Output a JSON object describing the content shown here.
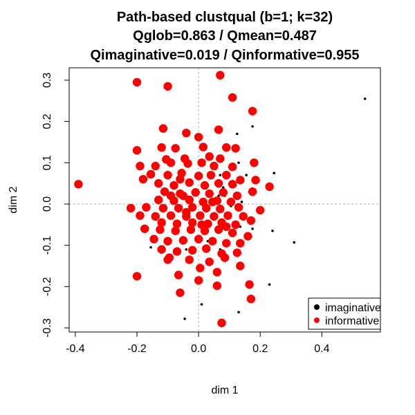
{
  "chart_data": {
    "type": "scatter",
    "title_lines": [
      "Path-based clustqual (b=1; k=32)",
      "Qglob=0.863 / Qmean=0.487",
      "Qimaginative=0.019 / Qinformative=0.955"
    ],
    "xlabel": "dim 1",
    "ylabel": "dim 2",
    "xlim": [
      -0.42,
      0.59
    ],
    "ylim": [
      -0.31,
      0.33
    ],
    "x_ticks": [
      -0.4,
      -0.2,
      0.0,
      0.2,
      0.4
    ],
    "x_tick_labels": [
      "-0.4",
      "-0.2",
      "0.0",
      "0.2",
      "0.4"
    ],
    "y_ticks": [
      -0.3,
      -0.2,
      -0.1,
      0.0,
      0.1,
      0.2,
      0.3
    ],
    "y_tick_labels": [
      "-0.3",
      "-0.2",
      "-0.1",
      "0.0",
      "0.1",
      "0.2",
      "0.3"
    ],
    "reference_lines": {
      "x": 0,
      "y": 0
    },
    "legend_position": "bottom-right",
    "colors": {
      "imaginative": "#000000",
      "informative": "#ff0000",
      "reference": "#bbbbbb"
    },
    "series": [
      {
        "name": "imaginative",
        "color": "#000000",
        "points": [
          [
            0.54,
            0.255
          ],
          [
            0.175,
            0.188
          ],
          [
            0.125,
            0.17
          ],
          [
            0.09,
            0.135
          ],
          [
            0.085,
            0.135
          ],
          [
            0.245,
            0.075
          ],
          [
            0.13,
            0.1
          ],
          [
            0.155,
            0.07
          ],
          [
            0.12,
            0.045
          ],
          [
            0.08,
            0.04
          ],
          [
            0.055,
            0.085
          ],
          [
            0.07,
            0.07
          ],
          [
            0.17,
            0.025
          ],
          [
            0.14,
            0.005
          ],
          [
            0.105,
            -0.005
          ],
          [
            0.065,
            0.02
          ],
          [
            0.085,
            0.02
          ],
          [
            0.24,
            -0.065
          ],
          [
            0.175,
            -0.06
          ],
          [
            0.135,
            -0.055
          ],
          [
            0.02,
            -0.045
          ],
          [
            0.31,
            -0.093
          ],
          [
            0.03,
            -0.09
          ],
          [
            0.07,
            -0.11
          ],
          [
            -0.04,
            -0.11
          ],
          [
            -0.155,
            -0.105
          ],
          [
            0.23,
            -0.195
          ],
          [
            0.13,
            -0.262
          ],
          [
            0.01,
            -0.243
          ],
          [
            -0.045,
            -0.278
          ]
        ]
      },
      {
        "name": "informative",
        "color": "#ff0000",
        "points": [
          [
            -0.39,
            0.048
          ],
          [
            -0.2,
            0.295
          ],
          [
            -0.1,
            0.285
          ],
          [
            0.07,
            0.312
          ],
          [
            0.11,
            0.258
          ],
          [
            0.175,
            0.225
          ],
          [
            -0.115,
            0.183
          ],
          [
            -0.04,
            0.172
          ],
          [
            0.065,
            0.18
          ],
          [
            0.0,
            0.162
          ],
          [
            -0.2,
            0.13
          ],
          [
            -0.12,
            0.137
          ],
          [
            -0.075,
            0.135
          ],
          [
            0.015,
            0.138
          ],
          [
            0.09,
            0.137
          ],
          [
            0.12,
            0.135
          ],
          [
            -0.105,
            0.108
          ],
          [
            -0.045,
            0.11
          ],
          [
            0.035,
            0.115
          ],
          [
            0.07,
            0.11
          ],
          [
            -0.19,
            0.092
          ],
          [
            -0.14,
            0.092
          ],
          [
            -0.09,
            0.1
          ],
          [
            -0.035,
            0.098
          ],
          [
            0.01,
            0.1
          ],
          [
            0.05,
            0.092
          ],
          [
            0.11,
            0.09
          ],
          [
            0.18,
            0.1
          ],
          [
            -0.155,
            0.072
          ],
          [
            -0.1,
            0.07
          ],
          [
            -0.055,
            0.075
          ],
          [
            0.0,
            0.068
          ],
          [
            0.04,
            0.07
          ],
          [
            0.09,
            0.07
          ],
          [
            0.135,
            0.058
          ],
          [
            0.185,
            0.058
          ],
          [
            0.23,
            0.042
          ],
          [
            -0.18,
            0.06
          ],
          [
            -0.13,
            0.05
          ],
          [
            -0.08,
            0.045
          ],
          [
            -0.03,
            0.052
          ],
          [
            0.02,
            0.045
          ],
          [
            0.065,
            0.05
          ],
          [
            0.11,
            0.048
          ],
          [
            -0.11,
            0.03
          ],
          [
            -0.06,
            0.025
          ],
          [
            -0.01,
            0.028
          ],
          [
            0.035,
            0.025
          ],
          [
            0.08,
            0.028
          ],
          [
            0.125,
            0.02
          ],
          [
            0.175,
            0.03
          ],
          [
            -0.13,
            0.01
          ],
          [
            -0.08,
            0.008
          ],
          [
            -0.03,
            0.01
          ],
          [
            0.015,
            0.005
          ],
          [
            0.06,
            0.008
          ],
          [
            0.105,
            0.005
          ],
          [
            -0.22,
            -0.01
          ],
          [
            -0.17,
            -0.008
          ],
          [
            -0.115,
            -0.01
          ],
          [
            -0.065,
            -0.01
          ],
          [
            -0.02,
            -0.008
          ],
          [
            0.025,
            -0.01
          ],
          [
            0.07,
            -0.012
          ],
          [
            0.13,
            -0.008
          ],
          [
            0.2,
            -0.015
          ],
          [
            -0.19,
            -0.028
          ],
          [
            -0.14,
            -0.03
          ],
          [
            -0.09,
            -0.028
          ],
          [
            -0.04,
            -0.03
          ],
          [
            0.005,
            -0.028
          ],
          [
            0.05,
            -0.03
          ],
          [
            0.095,
            -0.028
          ],
          [
            0.145,
            -0.03
          ],
          [
            -0.12,
            -0.045
          ],
          [
            -0.07,
            -0.048
          ],
          [
            -0.02,
            -0.045
          ],
          [
            0.03,
            -0.048
          ],
          [
            0.075,
            -0.045
          ],
          [
            0.12,
            -0.05
          ],
          [
            0.17,
            -0.04
          ],
          [
            -0.175,
            -0.06
          ],
          [
            -0.125,
            -0.062
          ],
          [
            -0.075,
            -0.065
          ],
          [
            -0.025,
            -0.062
          ],
          [
            0.02,
            -0.065
          ],
          [
            0.065,
            -0.062
          ],
          [
            0.11,
            -0.07
          ],
          [
            0.16,
            -0.078
          ],
          [
            -0.145,
            -0.085
          ],
          [
            -0.1,
            -0.09
          ],
          [
            -0.05,
            -0.088
          ],
          [
            0.0,
            -0.085
          ],
          [
            0.045,
            -0.09
          ],
          [
            0.09,
            -0.095
          ],
          [
            0.135,
            -0.095
          ],
          [
            -0.12,
            -0.11
          ],
          [
            -0.07,
            -0.115
          ],
          [
            -0.02,
            -0.112
          ],
          [
            0.025,
            -0.108
          ],
          [
            0.075,
            -0.12
          ],
          [
            0.125,
            -0.118
          ],
          [
            -0.095,
            -0.13
          ],
          [
            -0.03,
            -0.135
          ],
          [
            0.035,
            -0.14
          ],
          [
            0.085,
            -0.13
          ],
          [
            -0.2,
            -0.175
          ],
          [
            -0.065,
            -0.172
          ],
          [
            0.005,
            -0.155
          ],
          [
            0.06,
            -0.165
          ],
          [
            0.135,
            -0.15
          ],
          [
            -0.1,
            -0.135
          ],
          [
            -0.06,
            -0.215
          ],
          [
            0.0,
            -0.185
          ],
          [
            0.165,
            -0.195
          ],
          [
            0.06,
            -0.198
          ],
          [
            0.17,
            -0.23
          ],
          [
            0.075,
            -0.288
          ],
          [
            -0.05,
            0.02
          ],
          [
            -0.04,
            -0.02
          ],
          [
            0.01,
            -0.05
          ],
          [
            -0.09,
            0.02
          ],
          [
            0.045,
            0.005
          ],
          [
            -0.06,
            0.06
          ],
          [
            0.09,
            -0.055
          ]
        ]
      }
    ]
  },
  "legend": {
    "entries": [
      {
        "label": "imaginative",
        "color": "#000000"
      },
      {
        "label": "informative",
        "color": "#ff0000"
      }
    ]
  }
}
